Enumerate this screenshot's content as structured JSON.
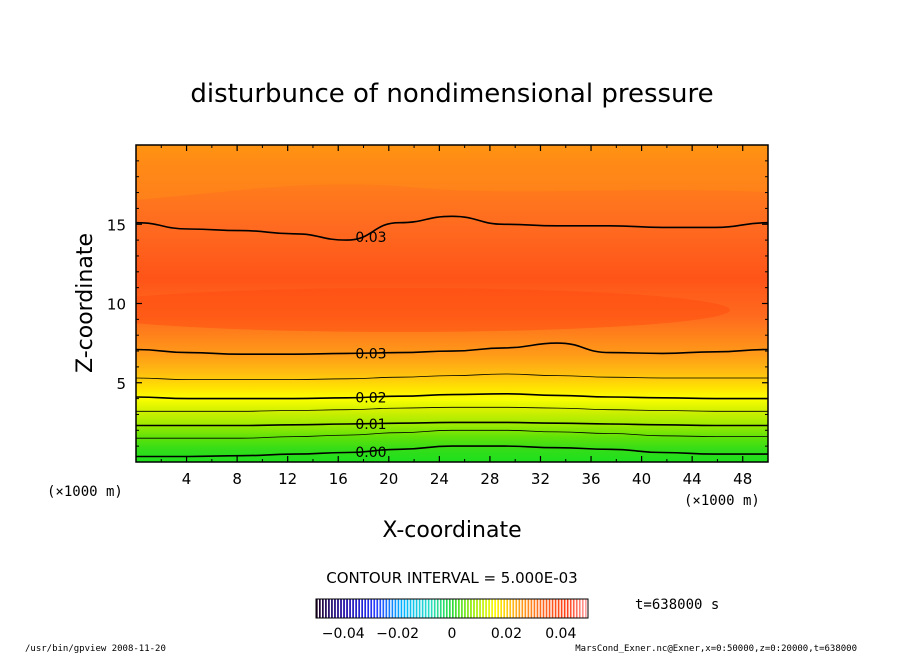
{
  "chart_data": {
    "type": "heatmap",
    "title": "disturbunce of nondimensional pressure",
    "xlabel": "X-coordinate",
    "ylabel": "Z-coordinate",
    "x_unit": "(×1000 m)",
    "y_unit": "(×1000 m)",
    "xlim": [
      0,
      50
    ],
    "ylim": [
      0,
      20
    ],
    "x_ticks": [
      4,
      8,
      12,
      16,
      20,
      24,
      28,
      32,
      36,
      40,
      44,
      48
    ],
    "y_ticks": [
      5,
      10,
      15
    ],
    "contour_interval_text": "CONTOUR INTERVAL = 5.000E-03",
    "contour_lines": [
      {
        "label": "0.00",
        "value": 0.0,
        "z": [
          0.35,
          0.35,
          0.4,
          0.5,
          0.6,
          0.8,
          1.0,
          1.0,
          0.9,
          0.8,
          0.6,
          0.5,
          0.5
        ],
        "labeled": true,
        "label_x": 17.4
      },
      {
        "label": "",
        "value": 0.005,
        "z": [
          1.5,
          1.5,
          1.5,
          1.6,
          1.7,
          1.85,
          2.0,
          2.0,
          1.9,
          1.8,
          1.65,
          1.6,
          1.6
        ],
        "labeled": false
      },
      {
        "label": "0.01",
        "value": 0.01,
        "z": [
          2.3,
          2.3,
          2.3,
          2.35,
          2.4,
          2.45,
          2.5,
          2.5,
          2.45,
          2.4,
          2.35,
          2.3,
          2.3
        ],
        "labeled": true,
        "label_x": 17.4
      },
      {
        "label": "",
        "value": 0.015,
        "z": [
          3.2,
          3.2,
          3.2,
          3.25,
          3.3,
          3.4,
          3.45,
          3.45,
          3.4,
          3.3,
          3.25,
          3.2,
          3.2
        ],
        "labeled": false
      },
      {
        "label": "0.02",
        "value": 0.02,
        "z": [
          4.1,
          4.0,
          4.0,
          4.0,
          4.05,
          4.15,
          4.25,
          4.3,
          4.2,
          4.1,
          4.05,
          4.0,
          4.0
        ],
        "labeled": true,
        "label_x": 17.4
      },
      {
        "label": "",
        "value": 0.025,
        "z": [
          5.3,
          5.2,
          5.2,
          5.2,
          5.25,
          5.35,
          5.45,
          5.55,
          5.45,
          5.35,
          5.3,
          5.3,
          5.3
        ],
        "labeled": false
      },
      {
        "label": "0.03",
        "value": 0.03,
        "z": [
          7.1,
          6.9,
          6.8,
          6.8,
          6.85,
          6.9,
          7.0,
          7.2,
          7.5,
          6.9,
          6.85,
          6.95,
          7.1
        ],
        "labeled": true,
        "label_x": 17.4
      },
      {
        "label": "0.03",
        "value": 0.03,
        "z": [
          15.1,
          14.7,
          14.6,
          14.4,
          14.0,
          15.1,
          15.5,
          15.0,
          14.9,
          14.9,
          14.8,
          14.8,
          15.1
        ],
        "labeled": true,
        "label_x": 17.4
      }
    ],
    "colorbar": {
      "ticks": [
        "−0.04",
        "−0.02",
        "0",
        "0.02",
        "0.04"
      ],
      "range": [
        -0.05,
        0.05
      ]
    },
    "colors": {
      "field_low": "#1ee01e",
      "field_mid": "#ffff00",
      "field_high": "#ff6020",
      "field_max": "#ff4a10"
    }
  },
  "time_label": "t=638000 s",
  "footer": {
    "left": "/usr/bin/gpview   2008-11-20",
    "right": "MarsCond_Exner.nc@Exner,x=0:50000,z=0:20000,t=638000"
  }
}
